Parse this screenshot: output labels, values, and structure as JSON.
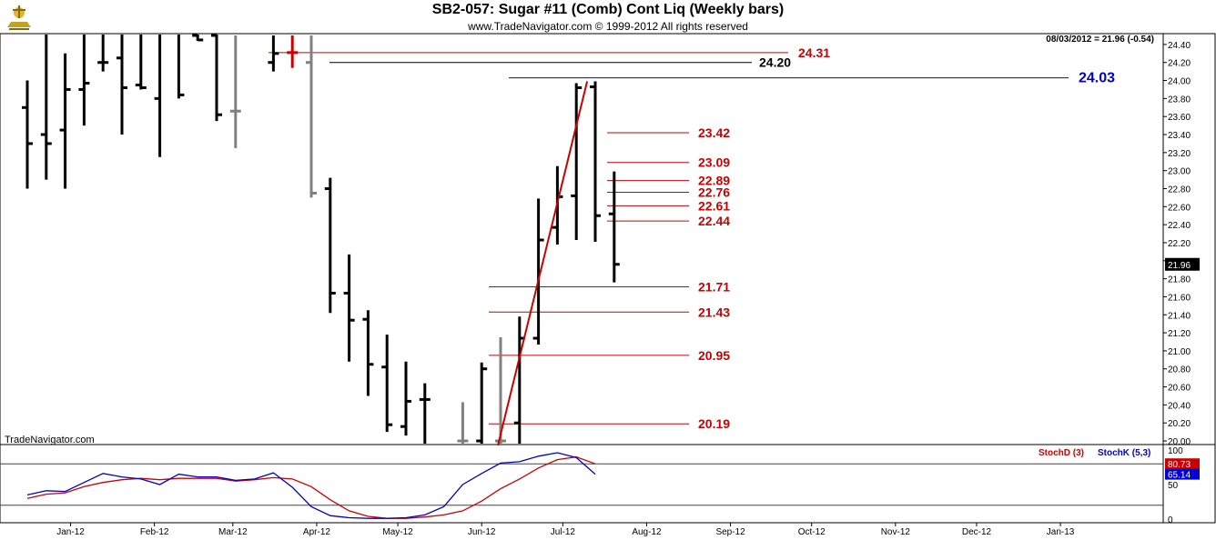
{
  "header": {
    "title": "SB2-057:  Sugar #11 (Comb) Cont Liq  (Weekly bars)",
    "copyright": "www.TradeNavigator.com © 1999-2012 All rights reserved",
    "last_quote": "08/03/2012 = 21.96 (-0.54)",
    "watermark": "TradeNavigator.com"
  },
  "colors": {
    "bar": "#000000",
    "bar_gray": "#808080",
    "level_red": "#cc0000",
    "level_black": "#000000",
    "level_blue": "#0000cc",
    "stoch_d": "#cc0000",
    "stoch_k": "#0000cc",
    "grid": "#cfcfcf"
  },
  "chart_data": [
    {
      "type": "ohlc-bar",
      "title": "SB2-057:  Sugar #11 (Comb) Cont Liq  (Weekly bars)",
      "ylim": [
        19.96,
        24.52
      ],
      "y_ticks": [
        "24.40",
        "24.20",
        "24.00",
        "23.80",
        "23.60",
        "23.40",
        "23.20",
        "23.00",
        "22.80",
        "22.60",
        "22.40",
        "22.20",
        "22.00",
        "21.80",
        "21.60",
        "21.40",
        "21.20",
        "21.00",
        "20.80",
        "20.60",
        "20.40",
        "20.20",
        "20.00"
      ],
      "x_labels": [
        "Jan-12",
        "Feb-12",
        "Mar-12",
        "Apr-12",
        "May-12",
        "Jun-12",
        "Jul-12",
        "Aug-12",
        "Sep-12",
        "Oct-12",
        "Nov-12",
        "Dec-12",
        "Jan-13"
      ],
      "current_price_label": "21.96",
      "bars": [
        {
          "date": "2011-12-30",
          "open": 23.7,
          "high": 24.0,
          "low": 22.8,
          "close": 23.3,
          "color": "black"
        },
        {
          "date": "2012-01-06",
          "open": 23.4,
          "high": 24.8,
          "low": 22.9,
          "close": 23.3,
          "color": "black"
        },
        {
          "date": "2012-01-13",
          "open": 23.45,
          "high": 24.3,
          "low": 22.8,
          "close": 23.9,
          "color": "black"
        },
        {
          "date": "2012-01-20",
          "open": 23.9,
          "high": 24.9,
          "low": 23.5,
          "close": 23.97,
          "color": "black"
        },
        {
          "date": "2012-01-27",
          "open": 24.2,
          "high": 24.9,
          "low": 24.1,
          "close": 24.2,
          "color": "black"
        },
        {
          "date": "2012-02-03",
          "open": 24.25,
          "high": 25.0,
          "low": 23.4,
          "close": 23.92,
          "color": "black"
        },
        {
          "date": "2012-02-10",
          "open": 23.95,
          "high": 24.7,
          "low": 23.9,
          "close": 23.92,
          "color": "black"
        },
        {
          "date": "2012-02-17",
          "open": 23.8,
          "high": 24.7,
          "low": 23.15,
          "close": 24.7,
          "color": "black"
        },
        {
          "date": "2012-02-24",
          "open": 24.6,
          "high": 24.6,
          "low": 23.8,
          "close": 23.84,
          "color": "black"
        },
        {
          "date": "2012-03-02",
          "open": 24.5,
          "high": 24.6,
          "low": 24.44,
          "close": 24.45,
          "color": "black"
        },
        {
          "date": "2012-03-09",
          "open": 24.5,
          "high": 24.6,
          "low": 23.55,
          "close": 23.62,
          "color": "black"
        },
        {
          "date": "2012-03-16",
          "open": 23.66,
          "high": 24.5,
          "low": 23.25,
          "close": 23.66,
          "color": "gray"
        },
        {
          "date": "2012-03-30",
          "open": 24.2,
          "high": 24.5,
          "low": 24.1,
          "close": 24.3,
          "color": "black"
        },
        {
          "date": "2012-04-06",
          "open": 24.31,
          "high": 24.5,
          "low": 24.14,
          "close": 24.31,
          "color": "red"
        },
        {
          "date": "2012-04-13",
          "open": 24.2,
          "high": 24.5,
          "low": 22.7,
          "close": 22.75,
          "color": "gray"
        },
        {
          "date": "2012-04-20",
          "open": 22.8,
          "high": 22.92,
          "low": 21.42,
          "close": 21.64,
          "color": "black"
        },
        {
          "date": "2012-04-27",
          "open": 21.64,
          "high": 22.07,
          "low": 20.88,
          "close": 21.34,
          "color": "black"
        },
        {
          "date": "2012-05-04",
          "open": 21.35,
          "high": 21.45,
          "low": 20.5,
          "close": 20.85,
          "color": "black"
        },
        {
          "date": "2012-05-11",
          "open": 20.82,
          "high": 21.18,
          "low": 20.1,
          "close": 20.18,
          "color": "black"
        },
        {
          "date": "2012-05-18",
          "open": 20.16,
          "high": 20.88,
          "low": 20.06,
          "close": 20.44,
          "color": "black"
        },
        {
          "date": "2012-05-25",
          "open": 20.46,
          "high": 20.64,
          "low": 19.97,
          "close": 20.46,
          "color": "black"
        },
        {
          "date": "2012-06-08",
          "open": 20.0,
          "high": 20.43,
          "low": 19.97,
          "close": 20.0,
          "color": "gray"
        },
        {
          "date": "2012-06-15",
          "open": 20.0,
          "high": 20.87,
          "low": 19.97,
          "close": 20.8,
          "color": "black"
        },
        {
          "date": "2012-06-22",
          "open": 20.0,
          "high": 21.15,
          "low": 19.97,
          "close": 20.0,
          "color": "gray"
        },
        {
          "date": "2012-06-29",
          "open": 20.2,
          "high": 21.38,
          "low": 19.97,
          "close": 21.14,
          "color": "black"
        },
        {
          "date": "2012-07-06",
          "open": 21.14,
          "high": 22.69,
          "low": 21.07,
          "close": 22.23,
          "color": "black"
        },
        {
          "date": "2012-07-13",
          "open": 22.37,
          "high": 23.05,
          "low": 22.18,
          "close": 22.71,
          "color": "black"
        },
        {
          "date": "2012-07-20",
          "open": 22.72,
          "high": 23.97,
          "low": 22.23,
          "close": 23.92,
          "color": "black"
        },
        {
          "date": "2012-07-27",
          "open": 23.93,
          "high": 23.99,
          "low": 22.21,
          "close": 22.5,
          "color": "black"
        },
        {
          "date": "2012-08-03",
          "open": 22.52,
          "high": 22.99,
          "low": 21.76,
          "close": 21.96,
          "color": "black"
        }
      ],
      "trendline": {
        "from": {
          "date": "2012-06-21",
          "price": 19.95
        },
        "to": {
          "date": "2012-07-24",
          "price": 23.99
        }
      },
      "levels": [
        {
          "value": 24.31,
          "label": "24.31",
          "color": "red"
        },
        {
          "value": 24.2,
          "label": "24.20",
          "color": "black"
        },
        {
          "value": 24.03,
          "label": "24.03",
          "color": "blue"
        },
        {
          "value": 23.42,
          "label": "23.42",
          "color": "red"
        },
        {
          "value": 23.09,
          "label": "23.09",
          "color": "red"
        },
        {
          "value": 22.89,
          "label": "22.89",
          "color": "red"
        },
        {
          "value": 22.76,
          "label": "22.76",
          "color": "red"
        },
        {
          "value": 22.61,
          "label": "22.61",
          "color": "red"
        },
        {
          "value": 22.44,
          "label": "22.44",
          "color": "red"
        },
        {
          "value": 21.71,
          "label": "21.71",
          "color": "red"
        },
        {
          "value": 21.43,
          "label": "21.43",
          "color": "red"
        },
        {
          "value": 20.95,
          "label": "20.95",
          "color": "red"
        },
        {
          "value": 20.19,
          "label": "20.19",
          "color": "red"
        }
      ]
    },
    {
      "type": "line",
      "series": [
        {
          "name": "StochD (3)",
          "color": "#cc0000",
          "last_value_label": "80.73",
          "values": [
            30,
            36,
            38,
            47,
            53,
            57,
            59,
            57,
            59,
            59,
            59,
            55,
            57,
            60,
            58,
            47,
            28,
            12,
            4,
            1,
            1,
            3,
            6,
            12,
            26,
            44,
            58,
            74,
            86,
            90,
            80
          ]
        },
        {
          "name": "StochK (5,3)",
          "color": "#0000cc",
          "last_value_label": "65.14",
          "values": [
            35,
            41,
            40,
            53,
            66,
            61,
            58,
            50,
            65,
            61,
            61,
            56,
            58,
            67,
            46,
            18,
            5,
            2,
            1,
            1,
            2,
            6,
            18,
            50,
            66,
            81,
            83,
            91,
            96,
            89,
            65
          ]
        }
      ],
      "y_ticks": [
        "100",
        "50",
        "0"
      ],
      "ylim": [
        0,
        100
      ],
      "reference_lines": [
        80,
        20
      ]
    }
  ]
}
